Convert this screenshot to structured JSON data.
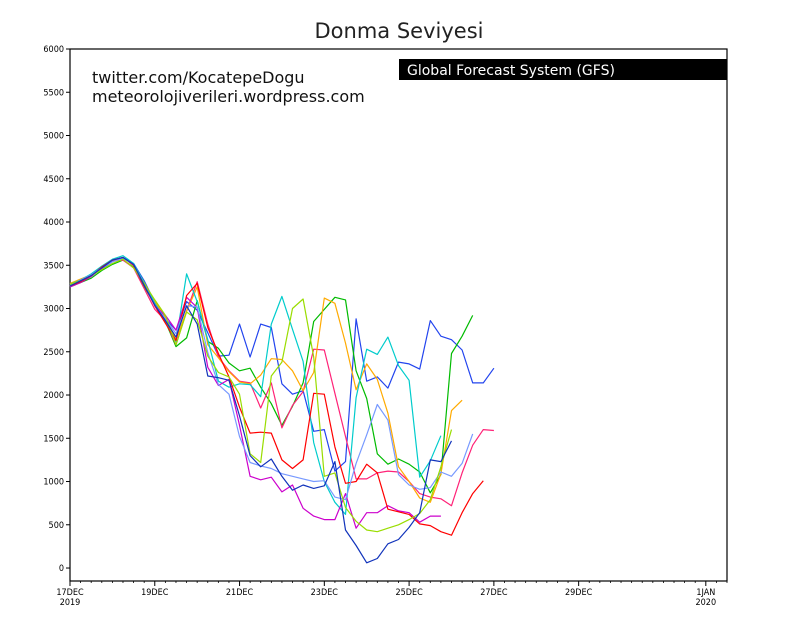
{
  "chart_data": {
    "type": "line",
    "title": "Donma Seviyesi",
    "credits": [
      "twitter.com/KocatepeDogu",
      "meteorolojiverileri.wordpress.com"
    ],
    "model_label": "Global Forecast System (GFS)",
    "xlabel": "",
    "ylabel": "",
    "ylim": [
      -150,
      6000
    ],
    "yticks": [
      0,
      500,
      1000,
      1500,
      2000,
      2500,
      3000,
      3500,
      4000,
      4500,
      5000,
      5500,
      6000
    ],
    "x_start": "17DEC 2019",
    "x_step_hours": 6,
    "xlim_steps": [
      0,
      62
    ],
    "xticks": [
      {
        "step": 0,
        "label": "17DEC",
        "sub": "2019"
      },
      {
        "step": 8,
        "label": "19DEC",
        "sub": ""
      },
      {
        "step": 16,
        "label": "21DEC",
        "sub": ""
      },
      {
        "step": 24,
        "label": "23DEC",
        "sub": ""
      },
      {
        "step": 32,
        "label": "25DEC",
        "sub": ""
      },
      {
        "step": 40,
        "label": "27DEC",
        "sub": ""
      },
      {
        "step": 48,
        "label": "29DEC",
        "sub": ""
      },
      {
        "step": 60,
        "label": "1JAN",
        "sub": "2020"
      }
    ],
    "grid": false,
    "series_note": "GFS ensemble members, values every 6 hours from 17DEC 00Z",
    "series": [
      {
        "color": "#2244ee",
        "values": [
          3270,
          3320,
          3380,
          3460,
          3540,
          3590,
          3520,
          3320,
          3070,
          2880,
          2750,
          3080,
          2980,
          2720,
          2450,
          2460,
          2820,
          2440,
          2820,
          2780,
          2130,
          2010,
          2050,
          1580,
          1600,
          1120,
          1230,
          2880,
          2160,
          2210,
          2080,
          2380,
          2360,
          2300,
          2860,
          2680,
          2640,
          2520,
          2140,
          2140,
          2310
        ]
      },
      {
        "color": "#00bb00",
        "values": [
          3250,
          3300,
          3350,
          3440,
          3510,
          3560,
          3480,
          3250,
          3050,
          2850,
          2560,
          2660,
          3090,
          2620,
          2540,
          2370,
          2280,
          2310,
          2090,
          1900,
          1650,
          1870,
          2140,
          2850,
          2990,
          3130,
          3100,
          2280,
          1960,
          1320,
          1200,
          1260,
          1200,
          1110,
          870,
          1080,
          2480,
          2680,
          2920
        ]
      },
      {
        "color": "#ff2277",
        "values": [
          3260,
          3310,
          3380,
          3470,
          3550,
          3560,
          3470,
          3230,
          2990,
          2860,
          2580,
          2970,
          3310,
          2820,
          2440,
          2280,
          2160,
          2140,
          1850,
          2140,
          1620,
          1880,
          2040,
          2530,
          2520,
          2020,
          1520,
          1030,
          1030,
          1100,
          1120,
          1110,
          1000,
          860,
          820,
          800,
          720,
          1100,
          1420,
          1600,
          1590
        ]
      },
      {
        "color": "#ffaa00",
        "values": [
          3290,
          3340,
          3390,
          3480,
          3560,
          3580,
          3510,
          3300,
          3080,
          2900,
          2640,
          2970,
          3250,
          2580,
          2430,
          2270,
          2150,
          2130,
          2230,
          2420,
          2410,
          2280,
          2050,
          2260,
          3120,
          3060,
          2600,
          2060,
          2360,
          2180,
          1790,
          1170,
          1000,
          810,
          760,
          1090,
          1820,
          1940
        ]
      },
      {
        "color": "#00cccc",
        "values": [
          3280,
          3330,
          3400,
          3490,
          3570,
          3610,
          3520,
          3300,
          3060,
          2860,
          2620,
          3400,
          3080,
          2640,
          2160,
          2090,
          2130,
          2120,
          1980,
          2820,
          3140,
          2760,
          2390,
          1450,
          1000,
          760,
          620,
          1970,
          2530,
          2470,
          2670,
          2340,
          2170,
          1050,
          1240,
          1530
        ]
      },
      {
        "color": "#cc00cc",
        "values": [
          3250,
          3300,
          3370,
          3460,
          3560,
          3590,
          3500,
          3280,
          3030,
          2920,
          2750,
          3130,
          3010,
          2320,
          2110,
          2180,
          1650,
          1060,
          1020,
          1050,
          880,
          960,
          690,
          600,
          560,
          560,
          860,
          460,
          640,
          640,
          720,
          660,
          640,
          530,
          600,
          600
        ]
      },
      {
        "color": "#ff0000",
        "values": [
          3260,
          3310,
          3380,
          3480,
          3560,
          3590,
          3500,
          3270,
          3030,
          2830,
          2630,
          3150,
          3290,
          2780,
          2480,
          2210,
          1860,
          1560,
          1570,
          1560,
          1250,
          1150,
          1250,
          2020,
          2010,
          1400,
          980,
          1000,
          1200,
          1100,
          680,
          650,
          620,
          510,
          490,
          420,
          380,
          640,
          860,
          1010
        ]
      },
      {
        "color": "#7799ff",
        "values": [
          3260,
          3330,
          3390,
          3470,
          3540,
          3580,
          3510,
          3280,
          3040,
          2880,
          2710,
          3030,
          3020,
          2490,
          2120,
          2010,
          1520,
          1220,
          1180,
          1150,
          1090,
          1060,
          1030,
          1000,
          1010,
          820,
          790,
          1210,
          1540,
          1890,
          1710,
          1080,
          960,
          910,
          930,
          1110,
          1060,
          1210,
          1550
        ]
      },
      {
        "color": "#99dd00",
        "values": [
          3280,
          3320,
          3380,
          3450,
          3520,
          3570,
          3470,
          3290,
          3100,
          2920,
          2580,
          2960,
          2870,
          2450,
          2260,
          2210,
          2010,
          1320,
          1220,
          2220,
          2380,
          3000,
          3110,
          2440,
          1060,
          1100,
          700,
          540,
          440,
          420,
          460,
          500,
          560,
          630,
          790,
          1170,
          1600
        ]
      },
      {
        "color": "#1133bb",
        "values": [
          3260,
          3320,
          3380,
          3470,
          3560,
          3590,
          3510,
          3270,
          3040,
          2860,
          2670,
          3030,
          2820,
          2220,
          2200,
          2170,
          1760,
          1300,
          1170,
          1260,
          1060,
          900,
          960,
          920,
          950,
          1230,
          440,
          260,
          60,
          110,
          280,
          330,
          470,
          640,
          1250,
          1230,
          1470
        ]
      }
    ]
  }
}
